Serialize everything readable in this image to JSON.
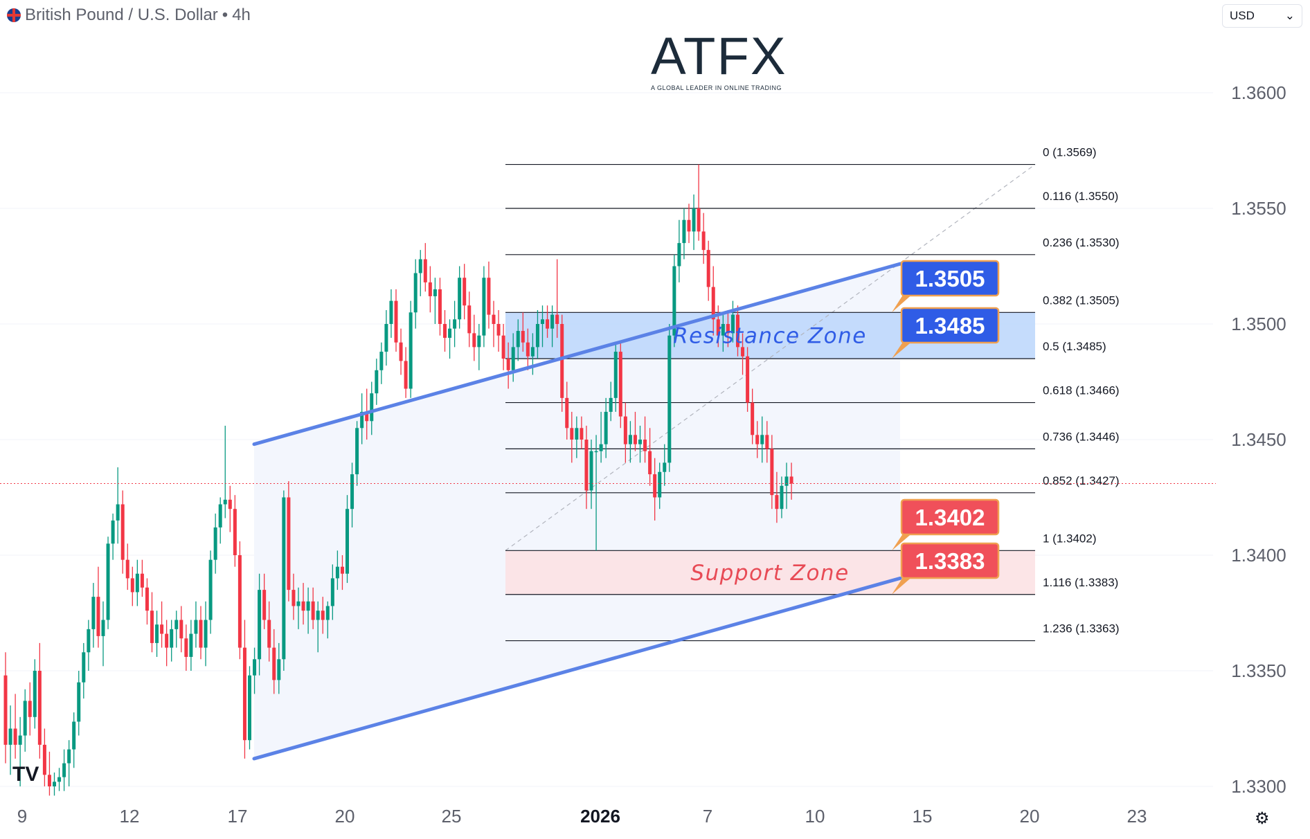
{
  "header": {
    "symbol": "British Pound / U.S. Dollar",
    "interval": "4h",
    "currency_select": "USD"
  },
  "logo": {
    "text": "ATFX",
    "tagline": "A GLOBAL LEADER IN ONLINE TRADING"
  },
  "colors": {
    "up": "#089981",
    "down": "#f23645",
    "trendline": "#5b82e6",
    "resistance_fill": "#bbd6fb",
    "support_fill": "#fbe0e3",
    "label_blue": "#2f5ce6",
    "label_red": "#f0505a",
    "label_border": "#f0a050"
  },
  "chart_data": {
    "type": "candlestick",
    "y_ticks": [
      "1.3600",
      "1.3550",
      "1.3500",
      "1.3450",
      "1.3400",
      "1.3350",
      "1.3300"
    ],
    "x_ticks": [
      "9",
      "12",
      "17",
      "20",
      "25",
      "2026",
      "7",
      "10",
      "15",
      "20",
      "23"
    ],
    "ylim": [
      1.3296,
      1.364
    ],
    "current_price": 1.3431,
    "fib_levels": [
      {
        "label": "0 (1.3569)",
        "value": 1.3569
      },
      {
        "label": "0.116 (1.3550)",
        "value": 1.355
      },
      {
        "label": "0.236 (1.3530)",
        "value": 1.353
      },
      {
        "label": "0.382 (1.3505)",
        "value": 1.3505
      },
      {
        "label": "0.5 (1.3485)",
        "value": 1.3485
      },
      {
        "label": "0.618 (1.3466)",
        "value": 1.3466
      },
      {
        "label": "0.736 (1.3446)",
        "value": 1.3446
      },
      {
        "label": "0.852 (1.3427)",
        "value": 1.3427
      },
      {
        "label": "1 (1.3402)",
        "value": 1.3402
      },
      {
        "label": "1.116 (1.3383)",
        "value": 1.3383
      },
      {
        "label": "1.236 (1.3363)",
        "value": 1.3363
      }
    ],
    "zones": [
      {
        "name": "Resistance Zone",
        "from": 1.3485,
        "to": 1.3505
      },
      {
        "name": "Support Zone",
        "from": 1.3383,
        "to": 1.3402
      }
    ],
    "price_labels": [
      {
        "text": "1.3505",
        "value": 1.3505,
        "kind": "blue"
      },
      {
        "text": "1.3485",
        "value": 1.3485,
        "kind": "blue"
      },
      {
        "text": "1.3402",
        "value": 1.3402,
        "kind": "red"
      },
      {
        "text": "1.3383",
        "value": 1.3383,
        "kind": "red"
      }
    ],
    "channel": {
      "upper": [
        [
          17,
          1.3448
        ],
        [
          14,
          1.3526
        ]
      ],
      "lower": [
        [
          17,
          1.3312
        ],
        [
          14,
          1.339
        ]
      ]
    },
    "candles": [
      [
        1.3348,
        1.3358,
        1.331,
        1.3318
      ],
      [
        1.3318,
        1.3335,
        1.3305,
        1.3325
      ],
      [
        1.3325,
        1.334,
        1.3312,
        1.3318
      ],
      [
        1.3318,
        1.333,
        1.33,
        1.3322
      ],
      [
        1.3322,
        1.3342,
        1.3315,
        1.3337
      ],
      [
        1.3337,
        1.3345,
        1.3322,
        1.333
      ],
      [
        1.333,
        1.3355,
        1.3325,
        1.335
      ],
      [
        1.335,
        1.3362,
        1.3312,
        1.3318
      ],
      [
        1.3318,
        1.3325,
        1.33,
        1.3305
      ],
      [
        1.3305,
        1.3315,
        1.3296,
        1.33
      ],
      [
        1.33,
        1.3306,
        1.3296,
        1.3302
      ],
      [
        1.3302,
        1.3308,
        1.3298,
        1.3304
      ],
      [
        1.3304,
        1.3316,
        1.3298,
        1.331
      ],
      [
        1.331,
        1.332,
        1.33,
        1.3316
      ],
      [
        1.3316,
        1.3332,
        1.3308,
        1.3328
      ],
      [
        1.3328,
        1.335,
        1.3322,
        1.3345
      ],
      [
        1.3345,
        1.3362,
        1.3338,
        1.3358
      ],
      [
        1.3358,
        1.3372,
        1.335,
        1.3368
      ],
      [
        1.3368,
        1.3388,
        1.336,
        1.3382
      ],
      [
        1.3382,
        1.3395,
        1.336,
        1.3365
      ],
      [
        1.3365,
        1.338,
        1.3352,
        1.3372
      ],
      [
        1.3372,
        1.3408,
        1.3368,
        1.3405
      ],
      [
        1.3405,
        1.3418,
        1.3398,
        1.3415
      ],
      [
        1.3415,
        1.3438,
        1.3405,
        1.3422
      ],
      [
        1.3422,
        1.3428,
        1.3392,
        1.3398
      ],
      [
        1.3398,
        1.3405,
        1.3385,
        1.339
      ],
      [
        1.339,
        1.3395,
        1.3378,
        1.3384
      ],
      [
        1.3384,
        1.3398,
        1.3378,
        1.3392
      ],
      [
        1.3392,
        1.3398,
        1.3382,
        1.3386
      ],
      [
        1.3386,
        1.339,
        1.337,
        1.3376
      ],
      [
        1.3376,
        1.3384,
        1.3358,
        1.3362
      ],
      [
        1.3362,
        1.3376,
        1.3356,
        1.337
      ],
      [
        1.337,
        1.338,
        1.336,
        1.3366
      ],
      [
        1.3366,
        1.3372,
        1.3352,
        1.336
      ],
      [
        1.336,
        1.3372,
        1.3354,
        1.3368
      ],
      [
        1.3368,
        1.3376,
        1.336,
        1.3372
      ],
      [
        1.3372,
        1.3378,
        1.3358,
        1.3364
      ],
      [
        1.3364,
        1.337,
        1.335,
        1.3356
      ],
      [
        1.3356,
        1.3372,
        1.335,
        1.3366
      ],
      [
        1.3366,
        1.338,
        1.336,
        1.3372
      ],
      [
        1.3372,
        1.3378,
        1.3355,
        1.336
      ],
      [
        1.336,
        1.338,
        1.3352,
        1.3372
      ],
      [
        1.3372,
        1.3402,
        1.3366,
        1.3398
      ],
      [
        1.3398,
        1.3418,
        1.3392,
        1.3412
      ],
      [
        1.3412,
        1.3425,
        1.3405,
        1.3422
      ],
      [
        1.3422,
        1.3456,
        1.3416,
        1.3424
      ],
      [
        1.3424,
        1.343,
        1.341,
        1.342
      ],
      [
        1.342,
        1.3426,
        1.3395,
        1.34
      ],
      [
        1.34,
        1.3406,
        1.3355,
        1.336
      ],
      [
        1.336,
        1.3372,
        1.3312,
        1.332
      ],
      [
        1.332,
        1.3352,
        1.3316,
        1.3348
      ],
      [
        1.3348,
        1.336,
        1.334,
        1.3355
      ],
      [
        1.3355,
        1.3392,
        1.3348,
        1.3385
      ],
      [
        1.3385,
        1.3392,
        1.3368,
        1.3372
      ],
      [
        1.3372,
        1.338,
        1.3354,
        1.336
      ],
      [
        1.336,
        1.3368,
        1.334,
        1.3346
      ],
      [
        1.3346,
        1.3362,
        1.334,
        1.3355
      ],
      [
        1.3355,
        1.3428,
        1.335,
        1.3425
      ],
      [
        1.3425,
        1.3432,
        1.338,
        1.3385
      ],
      [
        1.3385,
        1.3392,
        1.3372,
        1.3378
      ],
      [
        1.3378,
        1.3386,
        1.3368,
        1.338
      ],
      [
        1.338,
        1.3388,
        1.337,
        1.3376
      ],
      [
        1.3376,
        1.3386,
        1.3366,
        1.338
      ],
      [
        1.338,
        1.3386,
        1.3368,
        1.3372
      ],
      [
        1.3372,
        1.338,
        1.3358,
        1.3376
      ],
      [
        1.3376,
        1.3382,
        1.3366,
        1.3372
      ],
      [
        1.3372,
        1.338,
        1.3364,
        1.3378
      ],
      [
        1.3378,
        1.3396,
        1.3372,
        1.339
      ],
      [
        1.339,
        1.3402,
        1.3385,
        1.3395
      ],
      [
        1.3395,
        1.34,
        1.3385,
        1.3392
      ],
      [
        1.3392,
        1.3426,
        1.3388,
        1.342
      ],
      [
        1.342,
        1.344,
        1.3412,
        1.3435
      ],
      [
        1.3435,
        1.3458,
        1.343,
        1.3455
      ],
      [
        1.3455,
        1.347,
        1.3448,
        1.3462
      ],
      [
        1.3462,
        1.3472,
        1.345,
        1.3458
      ],
      [
        1.3458,
        1.3475,
        1.3452,
        1.347
      ],
      [
        1.347,
        1.3485,
        1.3465,
        1.348
      ],
      [
        1.348,
        1.3492,
        1.3474,
        1.3488
      ],
      [
        1.3488,
        1.3506,
        1.3482,
        1.35
      ],
      [
        1.35,
        1.3515,
        1.3494,
        1.351
      ],
      [
        1.351,
        1.3515,
        1.3488,
        1.3492
      ],
      [
        1.3492,
        1.3498,
        1.3478,
        1.3484
      ],
      [
        1.3484,
        1.349,
        1.3468,
        1.3472
      ],
      [
        1.3472,
        1.351,
        1.3468,
        1.3505
      ],
      [
        1.3505,
        1.3528,
        1.3498,
        1.3522
      ],
      [
        1.3522,
        1.3532,
        1.3512,
        1.3528
      ],
      [
        1.3528,
        1.3535,
        1.3514,
        1.3518
      ],
      [
        1.3518,
        1.3525,
        1.3505,
        1.3512
      ],
      [
        1.3512,
        1.352,
        1.35,
        1.3515
      ],
      [
        1.3515,
        1.352,
        1.3495,
        1.35
      ],
      [
        1.35,
        1.3506,
        1.3488,
        1.3494
      ],
      [
        1.3494,
        1.3502,
        1.3485,
        1.3498
      ],
      [
        1.3498,
        1.351,
        1.349,
        1.3502
      ],
      [
        1.3502,
        1.3525,
        1.3498,
        1.352
      ],
      [
        1.352,
        1.3526,
        1.3502,
        1.3508
      ],
      [
        1.3508,
        1.3514,
        1.349,
        1.3496
      ],
      [
        1.3496,
        1.3504,
        1.3484,
        1.349
      ],
      [
        1.349,
        1.35,
        1.348,
        1.3495
      ],
      [
        1.3495,
        1.3525,
        1.349,
        1.352
      ],
      [
        1.352,
        1.3527,
        1.3498,
        1.3504
      ],
      [
        1.3504,
        1.351,
        1.349,
        1.35
      ],
      [
        1.35,
        1.3506,
        1.3488,
        1.3495
      ],
      [
        1.3495,
        1.35,
        1.348,
        1.3485
      ],
      [
        1.3485,
        1.3492,
        1.3472,
        1.348
      ],
      [
        1.348,
        1.3496,
        1.3475,
        1.349
      ],
      [
        1.349,
        1.3502,
        1.3484,
        1.3497
      ],
      [
        1.3497,
        1.3505,
        1.3488,
        1.3492
      ],
      [
        1.3492,
        1.3498,
        1.348,
        1.3486
      ],
      [
        1.3486,
        1.3496,
        1.3478,
        1.349
      ],
      [
        1.349,
        1.3506,
        1.3485,
        1.35
      ],
      [
        1.35,
        1.3508,
        1.349,
        1.3502
      ],
      [
        1.3502,
        1.3508,
        1.3494,
        1.3498
      ],
      [
        1.3498,
        1.3508,
        1.349,
        1.3504
      ],
      [
        1.3504,
        1.3528,
        1.3494,
        1.35
      ],
      [
        1.35,
        1.3504,
        1.3462,
        1.3468
      ],
      [
        1.3468,
        1.3475,
        1.345,
        1.3455
      ],
      [
        1.3455,
        1.3462,
        1.344,
        1.345
      ],
      [
        1.345,
        1.346,
        1.3442,
        1.3455
      ],
      [
        1.3455,
        1.346,
        1.3446,
        1.345
      ],
      [
        1.345,
        1.3456,
        1.342,
        1.3428
      ],
      [
        1.3428,
        1.345,
        1.342,
        1.3445
      ],
      [
        1.3445,
        1.3452,
        1.3402,
        1.3445
      ],
      [
        1.3445,
        1.3462,
        1.344,
        1.3448
      ],
      [
        1.3448,
        1.3468,
        1.3442,
        1.3462
      ],
      [
        1.3462,
        1.3475,
        1.3458,
        1.3468
      ],
      [
        1.3468,
        1.3492,
        1.3462,
        1.3488
      ],
      [
        1.3488,
        1.3492,
        1.3455,
        1.346
      ],
      [
        1.346,
        1.3466,
        1.344,
        1.3448
      ],
      [
        1.3448,
        1.3458,
        1.344,
        1.3452
      ],
      [
        1.3452,
        1.3462,
        1.3445,
        1.3448
      ],
      [
        1.3448,
        1.3456,
        1.344,
        1.345
      ],
      [
        1.345,
        1.346,
        1.344,
        1.3445
      ],
      [
        1.3445,
        1.3455,
        1.343,
        1.3435
      ],
      [
        1.3435,
        1.3442,
        1.3415,
        1.3425
      ],
      [
        1.3425,
        1.344,
        1.342,
        1.3436
      ],
      [
        1.3436,
        1.3448,
        1.343,
        1.344
      ],
      [
        1.344,
        1.35,
        1.3436,
        1.3495
      ],
      [
        1.3495,
        1.353,
        1.349,
        1.3525
      ],
      [
        1.3525,
        1.3545,
        1.3518,
        1.3535
      ],
      [
        1.3535,
        1.355,
        1.3528,
        1.3545
      ],
      [
        1.3545,
        1.3552,
        1.3535,
        1.354
      ],
      [
        1.354,
        1.3556,
        1.3532,
        1.355
      ],
      [
        1.355,
        1.3569,
        1.3536,
        1.354
      ],
      [
        1.354,
        1.3548,
        1.3526,
        1.3532
      ],
      [
        1.3532,
        1.3536,
        1.351,
        1.3516
      ],
      [
        1.3516,
        1.3525,
        1.3495,
        1.3502
      ],
      [
        1.3502,
        1.3508,
        1.349,
        1.3495
      ],
      [
        1.3495,
        1.3505,
        1.3488,
        1.35
      ],
      [
        1.35,
        1.3506,
        1.349,
        1.3496
      ],
      [
        1.3496,
        1.351,
        1.3492,
        1.3504
      ],
      [
        1.3504,
        1.3508,
        1.3486,
        1.349
      ],
      [
        1.349,
        1.3496,
        1.3478,
        1.3486
      ],
      [
        1.3486,
        1.349,
        1.3462,
        1.3466
      ],
      [
        1.3466,
        1.3472,
        1.3448,
        1.3452
      ],
      [
        1.3452,
        1.3458,
        1.3442,
        1.3448
      ],
      [
        1.3448,
        1.346,
        1.344,
        1.3452
      ],
      [
        1.3452,
        1.3458,
        1.344,
        1.3446
      ],
      [
        1.3446,
        1.3452,
        1.342,
        1.3426
      ],
      [
        1.3426,
        1.3436,
        1.3414,
        1.342
      ],
      [
        1.342,
        1.3434,
        1.3416,
        1.343
      ],
      [
        1.343,
        1.344,
        1.342,
        1.3434
      ],
      [
        1.3434,
        1.344,
        1.3424,
        1.3431
      ]
    ]
  }
}
